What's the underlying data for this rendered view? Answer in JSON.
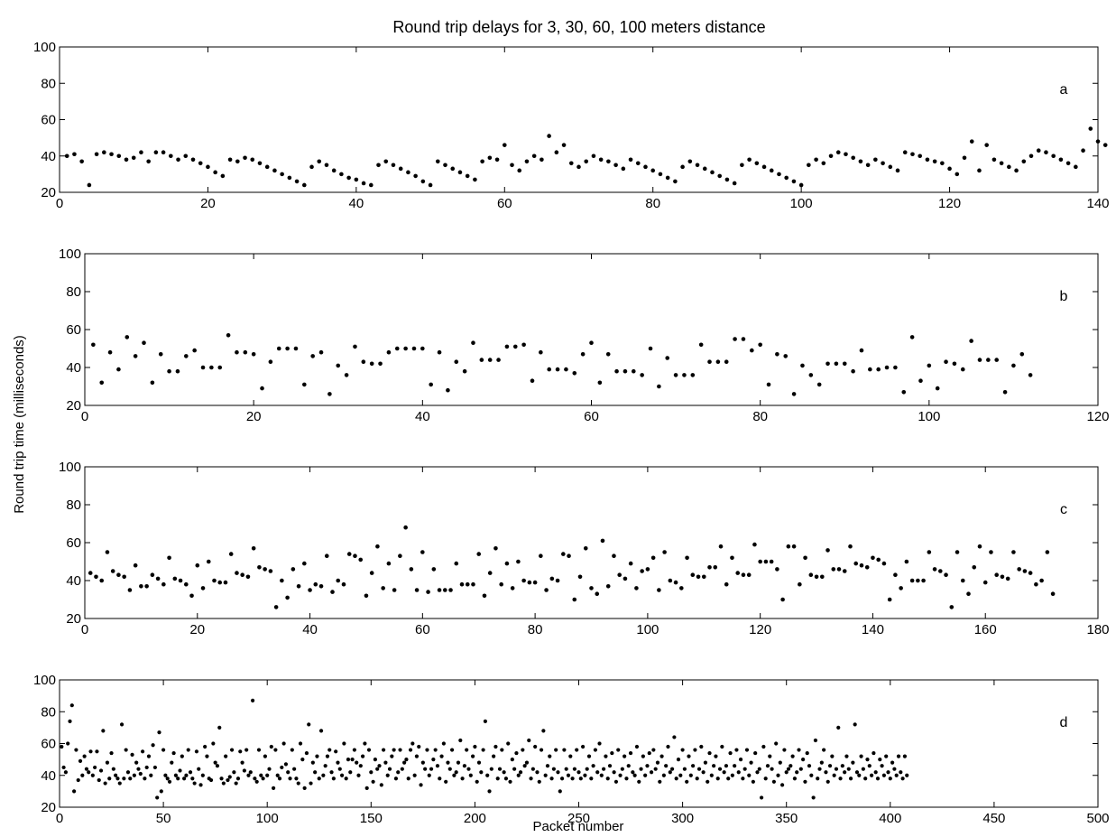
{
  "title": "Round trip delays for 3, 30, 60, 100 meters distance",
  "ylabel": "Round trip time (milliseconds)",
  "xlabel": "Packet number",
  "chart_data": [
    {
      "type": "scatter",
      "label": "a",
      "xlim": [
        0,
        140
      ],
      "ylim": [
        20,
        100
      ],
      "xticks": [
        0,
        20,
        40,
        60,
        80,
        100,
        120,
        140
      ],
      "yticks": [
        20,
        40,
        60,
        80,
        100
      ],
      "color": "#000000",
      "y": [
        40,
        41,
        37,
        24,
        41,
        42,
        41,
        40,
        38,
        39,
        42,
        37,
        42,
        42,
        40,
        38,
        40,
        38,
        36,
        34,
        31,
        29,
        38,
        37,
        39,
        38,
        36,
        34,
        32,
        30,
        28,
        26,
        24,
        34,
        37,
        35,
        32,
        30,
        28,
        27,
        25,
        24,
        35,
        37,
        35,
        33,
        31,
        29,
        26,
        24,
        37,
        35,
        33,
        31,
        29,
        27,
        37,
        39,
        38,
        46,
        35,
        32,
        37,
        40,
        38,
        51,
        42,
        46,
        36,
        34,
        37,
        40,
        38,
        37,
        35,
        33,
        38,
        36,
        34,
        32,
        30,
        28,
        26,
        34,
        37,
        35,
        33,
        31,
        29,
        27,
        25,
        35,
        38,
        36,
        34,
        32,
        30,
        28,
        26,
        24,
        35,
        38,
        36,
        40,
        42,
        41,
        39,
        37,
        35,
        38,
        36,
        34,
        32,
        42,
        41,
        40,
        38,
        37,
        36,
        33,
        30,
        39,
        48,
        32,
        46,
        38,
        36,
        34,
        32,
        37,
        40,
        43,
        42,
        40,
        38,
        36,
        34,
        43,
        55,
        48,
        46
      ]
    },
    {
      "type": "scatter",
      "label": "b",
      "xlim": [
        0,
        120
      ],
      "ylim": [
        20,
        100
      ],
      "xticks": [
        0,
        20,
        40,
        60,
        80,
        100,
        120
      ],
      "yticks": [
        20,
        40,
        60,
        80,
        100
      ],
      "color": "#000000",
      "y": [
        52,
        32,
        48,
        39,
        56,
        46,
        53,
        32,
        47,
        38,
        38,
        46,
        49,
        40,
        40,
        40,
        57,
        48,
        48,
        47,
        29,
        43,
        50,
        50,
        50,
        31,
        46,
        48,
        26,
        41,
        36,
        51,
        43,
        42,
        42,
        48,
        50,
        50,
        50,
        50,
        31,
        48,
        28,
        43,
        38,
        53,
        44,
        44,
        44,
        51,
        51,
        52,
        33,
        48,
        39,
        39,
        39,
        37,
        47,
        53,
        32,
        47,
        38,
        38,
        38,
        36,
        50,
        30,
        45,
        36,
        36,
        36,
        52,
        43,
        43,
        43,
        55,
        55,
        49,
        52,
        31,
        47,
        46,
        26,
        41,
        36,
        31,
        42,
        42,
        42,
        38,
        49,
        39,
        39,
        40,
        40,
        27,
        56,
        33,
        41,
        29,
        43,
        42,
        39,
        54,
        44,
        44,
        44,
        27,
        41,
        47,
        36
      ]
    },
    {
      "type": "scatter",
      "label": "c",
      "xlim": [
        0,
        180
      ],
      "ylim": [
        20,
        100
      ],
      "xticks": [
        0,
        20,
        40,
        60,
        80,
        100,
        120,
        140,
        160,
        180
      ],
      "yticks": [
        20,
        40,
        60,
        80,
        100
      ],
      "color": "#000000",
      "y": [
        44,
        42,
        40,
        55,
        45,
        43,
        42,
        35,
        48,
        37,
        37,
        43,
        41,
        38,
        52,
        41,
        40,
        38,
        32,
        48,
        36,
        50,
        40,
        39,
        39,
        54,
        44,
        43,
        42,
        57,
        47,
        46,
        45,
        26,
        40,
        31,
        46,
        37,
        49,
        35,
        38,
        37,
        53,
        34,
        40,
        38,
        54,
        53,
        51,
        32,
        44,
        58,
        36,
        49,
        35,
        53,
        68,
        46,
        35,
        55,
        34,
        46,
        35,
        35,
        35,
        49,
        38,
        38,
        38,
        54,
        32,
        44,
        57,
        38,
        49,
        36,
        50,
        40,
        39,
        39,
        53,
        35,
        41,
        40,
        54,
        53,
        30,
        42,
        57,
        36,
        33,
        61,
        37,
        53,
        43,
        41,
        49,
        36,
        45,
        46,
        52,
        35,
        55,
        40,
        39,
        36,
        52,
        43,
        42,
        42,
        47,
        47,
        58,
        38,
        52,
        44,
        43,
        43,
        59,
        50,
        50,
        50,
        46,
        30,
        58,
        58,
        38,
        52,
        43,
        42,
        42,
        56,
        46,
        46,
        45,
        58,
        49,
        48,
        47,
        52,
        51,
        49,
        30,
        43,
        36,
        50,
        40,
        40,
        40,
        55,
        46,
        45,
        43,
        26,
        55,
        40,
        33,
        47,
        58,
        39,
        55,
        43,
        42,
        41,
        55,
        46,
        45,
        44,
        38,
        40,
        55,
        33
      ]
    },
    {
      "type": "scatter",
      "label": "d",
      "xlim": [
        0,
        500
      ],
      "ylim": [
        20,
        100
      ],
      "xticks": [
        0,
        50,
        100,
        150,
        200,
        250,
        300,
        350,
        400,
        450,
        500
      ],
      "yticks": [
        20,
        40,
        60,
        80,
        100
      ],
      "color": "#000000",
      "y": [
        58,
        45,
        42,
        60,
        74,
        84,
        30,
        56,
        37,
        49,
        40,
        52,
        44,
        42,
        55,
        40,
        45,
        55,
        37,
        43,
        68,
        35,
        48,
        38,
        54,
        44,
        40,
        38,
        35,
        72,
        38,
        56,
        42,
        38,
        53,
        40,
        48,
        44,
        41,
        55,
        38,
        45,
        52,
        40,
        59,
        45,
        26,
        67,
        30,
        56,
        40,
        38,
        36,
        48,
        54,
        40,
        38,
        43,
        52,
        38,
        40,
        56,
        42,
        38,
        35,
        55,
        44,
        34,
        40,
        58,
        52,
        38,
        37,
        60,
        48,
        46,
        70,
        38,
        35,
        52,
        37,
        39,
        56,
        42,
        35,
        38,
        55,
        48,
        43,
        56,
        40,
        42,
        87,
        38,
        36,
        56,
        40,
        38,
        52,
        40,
        44,
        58,
        32,
        56,
        40,
        38,
        45,
        60,
        47,
        42,
        38,
        56,
        44,
        38,
        35,
        60,
        50,
        32,
        54,
        72,
        35,
        48,
        42,
        52,
        38,
        68,
        40,
        46,
        52,
        56,
        42,
        38,
        55,
        48,
        44,
        40,
        60,
        38,
        50,
        42,
        50,
        56,
        48,
        40,
        46,
        52,
        60,
        32,
        56,
        42,
        36,
        50,
        44,
        46,
        34,
        56,
        48,
        40,
        44,
        52,
        56,
        38,
        42,
        56,
        44,
        48,
        50,
        38,
        56,
        60,
        40,
        52,
        58,
        34,
        48,
        44,
        56,
        40,
        44,
        50,
        56,
        46,
        38,
        52,
        60,
        36,
        48,
        44,
        56,
        40,
        42,
        48,
        62,
        38,
        46,
        56,
        44,
        40,
        52,
        58,
        36,
        48,
        42,
        56,
        74,
        40,
        30,
        44,
        52,
        58,
        38,
        44,
        56,
        42,
        38,
        60,
        36,
        50,
        44,
        54,
        40,
        42,
        56,
        46,
        48,
        62,
        38,
        44,
        58,
        42,
        36,
        56,
        68,
        40,
        46,
        52,
        38,
        44,
        56,
        42,
        30,
        38,
        56,
        44,
        40,
        52,
        38,
        44,
        56,
        42,
        38,
        58,
        40,
        44,
        52,
        38,
        46,
        56,
        42,
        60,
        40,
        44,
        52,
        38,
        46,
        54,
        42,
        36,
        56,
        40,
        44,
        52,
        38,
        46,
        54,
        42,
        40,
        58,
        36,
        44,
        52,
        40,
        46,
        54,
        42,
        56,
        44,
        48,
        36,
        52,
        40,
        46,
        58,
        42,
        44,
        64,
        38,
        50,
        40,
        56,
        44,
        36,
        52,
        40,
        46,
        56,
        38,
        44,
        58,
        42,
        48,
        36,
        54,
        40,
        46,
        52,
        38,
        44,
        58,
        42,
        46,
        38,
        54,
        40,
        46,
        56,
        42,
        50,
        38,
        44,
        56,
        40,
        48,
        36,
        54,
        42,
        44,
        26,
        58,
        38,
        46,
        52,
        44,
        36,
        60,
        40,
        48,
        34,
        56,
        42,
        44,
        46,
        52,
        38,
        42,
        56,
        44,
        50,
        36,
        54,
        46,
        40,
        26,
        62,
        38,
        44,
        48,
        56,
        42,
        36,
        46,
        52,
        40,
        44,
        70,
        38,
        46,
        42,
        52,
        44,
        38,
        48,
        72,
        42,
        40,
        52,
        44,
        38,
        50,
        46,
        40,
        54,
        42,
        38,
        50,
        46,
        40,
        52,
        42,
        38,
        48,
        44,
        40,
        52,
        42,
        38,
        52,
        40
      ]
    }
  ]
}
